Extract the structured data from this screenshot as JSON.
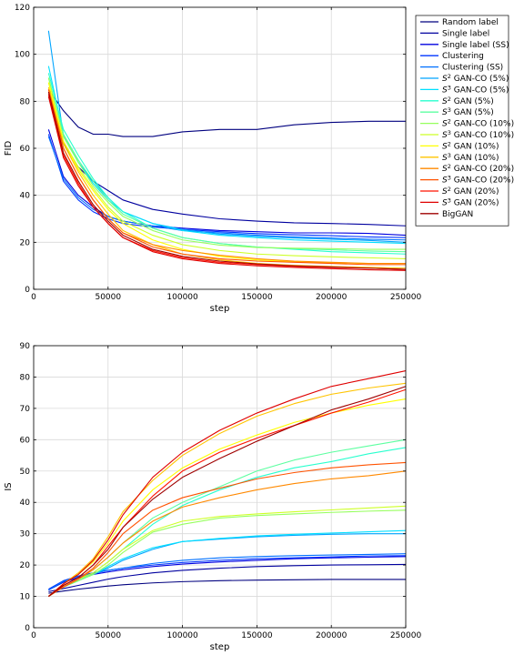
{
  "chart_data": [
    {
      "type": "line",
      "xlabel": "step",
      "ylabel": "FID",
      "xlim": [
        0,
        250000
      ],
      "ylim": [
        0,
        120
      ],
      "xticks": [
        0,
        50000,
        100000,
        150000,
        200000,
        250000
      ],
      "yticks": [
        0,
        20,
        40,
        60,
        80,
        100,
        120
      ],
      "grid": true,
      "legend_position": "outside-right",
      "x": [
        10000,
        20000,
        30000,
        40000,
        50000,
        60000,
        80000,
        100000,
        125000,
        150000,
        175000,
        200000,
        225000,
        250000
      ],
      "series": [
        {
          "name": "Random label",
          "color": "#00007f",
          "values": [
            85,
            76,
            69,
            66,
            66,
            65,
            65,
            67,
            68,
            68,
            70,
            71,
            71.5,
            71.5
          ]
        },
        {
          "name": "Single label",
          "color": "#00009f",
          "values": [
            83,
            62,
            52,
            46,
            42,
            38,
            34,
            32,
            30,
            29,
            28.3,
            28,
            27.6,
            27
          ]
        },
        {
          "name": "Single label (SS)",
          "color": "#0000df",
          "values": [
            68,
            48,
            40,
            35,
            31,
            29,
            27,
            26,
            25,
            24.5,
            24,
            24,
            23.8,
            23
          ]
        },
        {
          "name": "Clustering",
          "color": "#0035ff",
          "values": [
            66,
            46,
            38,
            33,
            30,
            28,
            26.5,
            25.5,
            24.5,
            23.7,
            23.2,
            22.8,
            22.3,
            22
          ]
        },
        {
          "name": "Clustering (SS)",
          "color": "#0070ff",
          "values": [
            65,
            47,
            39,
            34,
            31,
            29,
            27,
            25,
            24,
            23,
            22.3,
            21.8,
            21.3,
            21
          ]
        },
        {
          "name": "$S^2$ GAN-CO (5%)",
          "color": "#00a5ff",
          "values": [
            110,
            65,
            54,
            46,
            39,
            33,
            28,
            25.5,
            23.5,
            22.5,
            21.8,
            21.3,
            20.8,
            20
          ]
        },
        {
          "name": "$S^3$ GAN-CO (5%)",
          "color": "#00e0ff",
          "values": [
            95,
            66,
            54,
            45,
            38,
            33,
            28,
            25,
            23,
            22,
            21,
            20.5,
            20,
            19.5
          ]
        },
        {
          "name": "$S^2$ GAN (5%)",
          "color": "#28ffce",
          "values": [
            92,
            68,
            57,
            47,
            39,
            33,
            26,
            22,
            19.5,
            18,
            17,
            16,
            15.5,
            15
          ]
        },
        {
          "name": "$S^3$ GAN (5%)",
          "color": "#5dffa1",
          "values": [
            90,
            66,
            55,
            46,
            38,
            32,
            26,
            22,
            19.5,
            18,
            17.3,
            16.8,
            16.3,
            16
          ]
        },
        {
          "name": "$S^2$ GAN-CO (10%)",
          "color": "#96ff5d",
          "values": [
            90,
            65,
            54,
            44,
            37,
            31,
            25,
            21,
            18.8,
            17.8,
            17.5,
            17.3,
            17,
            17
          ]
        },
        {
          "name": "$S^3$ GAN-CO (10%)",
          "color": "#ceff28",
          "values": [
            88,
            63,
            52,
            43,
            35,
            29,
            23,
            19,
            16.5,
            15,
            14.3,
            13.8,
            13.4,
            13
          ]
        },
        {
          "name": "$S^2$ GAN (10%)",
          "color": "#ffff00",
          "values": [
            88,
            63,
            51,
            42,
            34,
            28,
            21,
            17,
            14,
            12.5,
            11.8,
            11.3,
            11,
            11
          ]
        },
        {
          "name": "$S^3$ GAN (10%)",
          "color": "#ffc400",
          "values": [
            86,
            62,
            50,
            40,
            32,
            25,
            19,
            15,
            12.5,
            11,
            10.2,
            9.7,
            9.3,
            9
          ]
        },
        {
          "name": "$S^2$ GAN-CO (20%)",
          "color": "#ff8900",
          "values": [
            85,
            60,
            48,
            38,
            30,
            24,
            19,
            16.5,
            14.5,
            13,
            12,
            11.5,
            11,
            11
          ]
        },
        {
          "name": "$S^3$ GAN-CO (20%)",
          "color": "#ff5200",
          "values": [
            85,
            60,
            48,
            38,
            30,
            24,
            18,
            15,
            13,
            12,
            11.5,
            11,
            10.5,
            10.5
          ]
        },
        {
          "name": "$S^2$ GAN (20%)",
          "color": "#ff1300",
          "values": [
            83,
            57,
            45,
            35,
            28,
            22,
            16.5,
            13.5,
            11.5,
            10.5,
            9.8,
            9.3,
            9,
            8.5
          ]
        },
        {
          "name": "$S^3$ GAN (20%)",
          "color": "#df0000",
          "values": [
            82,
            56,
            44,
            35,
            28,
            22,
            16,
            13,
            11,
            10,
            9.3,
            8.8,
            8.3,
            8
          ]
        },
        {
          "name": "BigGAN",
          "color": "#9f0000",
          "values": [
            84,
            58,
            46,
            36,
            29,
            23,
            17,
            14,
            12,
            10.8,
            10,
            9.5,
            9,
            8.5
          ]
        }
      ]
    },
    {
      "type": "line",
      "xlabel": "step",
      "ylabel": "IS",
      "xlim": [
        0,
        250000
      ],
      "ylim": [
        0,
        90
      ],
      "xticks": [
        0,
        50000,
        100000,
        150000,
        200000,
        250000
      ],
      "yticks": [
        0,
        10,
        20,
        30,
        40,
        50,
        60,
        70,
        80,
        90
      ],
      "grid": true,
      "x": [
        10000,
        20000,
        30000,
        40000,
        50000,
        60000,
        80000,
        100000,
        125000,
        150000,
        175000,
        200000,
        225000,
        250000
      ],
      "series": [
        {
          "name": "Random label",
          "color": "#00007f",
          "values": [
            11,
            11.7,
            12.3,
            12.8,
            13.3,
            13.7,
            14.3,
            14.7,
            15,
            15.2,
            15.3,
            15.4,
            15.4,
            15.4
          ]
        },
        {
          "name": "Single label",
          "color": "#00009f",
          "values": [
            11.5,
            12.5,
            13.5,
            14.5,
            15.5,
            16.3,
            17.5,
            18.3,
            19,
            19.5,
            19.8,
            20,
            20.1,
            20.2
          ]
        },
        {
          "name": "Single label (SS)",
          "color": "#0000df",
          "values": [
            12,
            14.5,
            16,
            17,
            17.8,
            18.5,
            19.5,
            20.3,
            21,
            21.5,
            22,
            22.3,
            22.5,
            22.7
          ]
        },
        {
          "name": "Clustering",
          "color": "#0035ff",
          "values": [
            12.3,
            15,
            16.5,
            17.5,
            18.3,
            19,
            20,
            20.8,
            21.5,
            22,
            22.3,
            22.6,
            22.9,
            23
          ]
        },
        {
          "name": "Clustering (SS)",
          "color": "#0070ff",
          "values": [
            12,
            14.8,
            16.3,
            17.3,
            18.3,
            19,
            20.5,
            21.5,
            22.3,
            22.7,
            23,
            23.2,
            23.4,
            23.6
          ]
        },
        {
          "name": "$S^2$ GAN-CO (5%)",
          "color": "#00a5ff",
          "values": [
            10,
            13,
            15,
            17,
            19,
            21.5,
            25,
            27.5,
            28.3,
            29,
            29.5,
            29.8,
            30,
            30
          ]
        },
        {
          "name": "$S^3$ GAN-CO (5%)",
          "color": "#00e0ff",
          "values": [
            10,
            13,
            15,
            17,
            19.5,
            22,
            25.5,
            27.5,
            28.5,
            29.3,
            29.8,
            30.2,
            30.6,
            31
          ]
        },
        {
          "name": "$S^2$ GAN (5%)",
          "color": "#28ffce",
          "values": [
            10,
            13,
            15,
            17.5,
            21,
            25,
            33,
            39,
            44,
            48,
            51,
            53,
            55.5,
            57.5
          ]
        },
        {
          "name": "$S^3$ GAN (5%)",
          "color": "#5dffa1",
          "values": [
            10,
            13,
            15.5,
            18.5,
            22.5,
            27,
            35,
            40,
            45,
            50,
            53.5,
            56,
            58,
            60
          ]
        },
        {
          "name": "$S^2$ GAN-CO (10%)",
          "color": "#96ff5d",
          "values": [
            10,
            13,
            15,
            17,
            20,
            24,
            30.5,
            33,
            35,
            35.8,
            36.3,
            36.8,
            37.2,
            37.5
          ]
        },
        {
          "name": "$S^3$ GAN-CO (10%)",
          "color": "#ceff28",
          "values": [
            10,
            13,
            15.5,
            17.5,
            21,
            25,
            31,
            34,
            35.5,
            36.3,
            37,
            37.6,
            38.2,
            38.8
          ]
        },
        {
          "name": "$S^2$ GAN (10%)",
          "color": "#ffff00",
          "values": [
            10,
            14,
            17,
            21,
            27,
            34,
            44,
            51,
            57,
            61.5,
            65.5,
            68.5,
            71,
            73
          ]
        },
        {
          "name": "$S^3$ GAN (10%)",
          "color": "#ffc400",
          "values": [
            10,
            14,
            17.5,
            22,
            29,
            37,
            47,
            55,
            62,
            67.5,
            71.5,
            74.5,
            76.5,
            78
          ]
        },
        {
          "name": "$S^2$ GAN-CO (20%)",
          "color": "#ff8900",
          "values": [
            10,
            13,
            15.5,
            18.5,
            22.5,
            27,
            34,
            38.5,
            41.5,
            44,
            46,
            47.5,
            48.5,
            50
          ]
        },
        {
          "name": "$S^3$ GAN-CO (20%)",
          "color": "#ff5200",
          "values": [
            10,
            13,
            15.5,
            19,
            24,
            30,
            37.5,
            41.5,
            44.5,
            47.5,
            49.5,
            51,
            52,
            52.7
          ]
        },
        {
          "name": "$S^2$ GAN (20%)",
          "color": "#ff1300",
          "values": [
            10,
            13.5,
            16,
            20,
            26,
            32,
            42,
            50,
            56,
            60.5,
            64.5,
            68.5,
            72,
            76
          ]
        },
        {
          "name": "$S^3$ GAN (20%)",
          "color": "#df0000",
          "values": [
            10,
            14,
            17,
            21.5,
            28,
            36,
            48,
            56,
            63,
            68.5,
            73,
            77,
            79.5,
            82
          ]
        },
        {
          "name": "BigGAN",
          "color": "#9f0000",
          "values": [
            10,
            13.5,
            16,
            20,
            25,
            32,
            41,
            48,
            54,
            59.5,
            64.5,
            69.5,
            73,
            77
          ]
        }
      ]
    }
  ]
}
